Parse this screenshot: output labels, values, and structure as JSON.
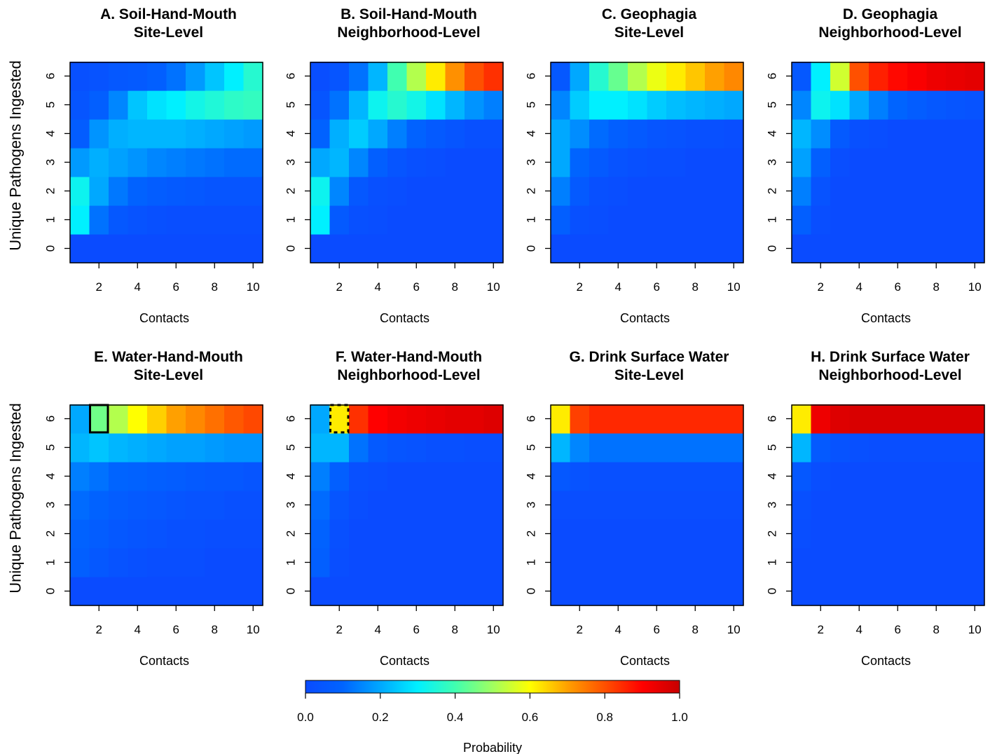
{
  "chart_data": {
    "type": "heatmap",
    "x_values": [
      1,
      2,
      3,
      4,
      5,
      6,
      7,
      8,
      9,
      10
    ],
    "x_tick_labels": [
      "2",
      "4",
      "6",
      "8",
      "10"
    ],
    "y_values": [
      0,
      1,
      2,
      3,
      4,
      5,
      6
    ],
    "y_tick_labels": [
      "0",
      "1",
      "2",
      "3",
      "4",
      "5",
      "6"
    ],
    "xlabel": "Contacts",
    "ylabel": "Unique Pathogens Ingested",
    "colorbar": {
      "label": "Probability",
      "range": [
        0,
        1
      ],
      "tick_labels": [
        "0.0",
        "0.2",
        "0.4",
        "0.6",
        "0.8",
        "1.0"
      ],
      "colors": [
        "#0a4bff",
        "#0064ff",
        "#00a8ff",
        "#00f0ff",
        "#40ffb0",
        "#a0ff60",
        "#ffff00",
        "#ffa000",
        "#ff5000",
        "#ff0000",
        "#c80000"
      ]
    },
    "panels": [
      {
        "title_line1": "A. Soil-Hand-Mouth",
        "title_line2": "Site-Level",
        "values": [
          [
            0.0,
            0.0,
            0.0,
            0.0,
            0.0,
            0.0,
            0.0,
            0.0,
            0.0,
            0.0
          ],
          [
            0.3,
            0.12,
            0.05,
            0.03,
            0.02,
            0.01,
            0.01,
            0.01,
            0.01,
            0.01
          ],
          [
            0.32,
            0.2,
            0.13,
            0.09,
            0.07,
            0.06,
            0.05,
            0.04,
            0.04,
            0.04
          ],
          [
            0.18,
            0.21,
            0.19,
            0.17,
            0.15,
            0.14,
            0.13,
            0.12,
            0.11,
            0.11
          ],
          [
            0.07,
            0.17,
            0.21,
            0.22,
            0.22,
            0.22,
            0.21,
            0.2,
            0.19,
            0.18
          ],
          [
            0.04,
            0.08,
            0.15,
            0.24,
            0.28,
            0.3,
            0.33,
            0.35,
            0.37,
            0.38
          ],
          [
            0.02,
            0.03,
            0.05,
            0.06,
            0.08,
            0.12,
            0.18,
            0.24,
            0.3,
            0.36
          ]
        ]
      },
      {
        "title_line1": "B. Soil-Hand-Mouth",
        "title_line2": "Neighborhood-Level",
        "values": [
          [
            0.0,
            0.0,
            0.0,
            0.0,
            0.0,
            0.0,
            0.0,
            0.0,
            0.0,
            0.0
          ],
          [
            0.3,
            0.06,
            0.02,
            0.01,
            0.0,
            0.0,
            0.0,
            0.0,
            0.0,
            0.0
          ],
          [
            0.32,
            0.15,
            0.05,
            0.02,
            0.01,
            0.0,
            0.0,
            0.0,
            0.0,
            0.0
          ],
          [
            0.2,
            0.22,
            0.15,
            0.08,
            0.04,
            0.02,
            0.01,
            0.0,
            0.0,
            0.0
          ],
          [
            0.09,
            0.21,
            0.25,
            0.2,
            0.14,
            0.09,
            0.06,
            0.04,
            0.02,
            0.02
          ],
          [
            0.04,
            0.12,
            0.22,
            0.32,
            0.36,
            0.33,
            0.28,
            0.22,
            0.17,
            0.14
          ],
          [
            0.01,
            0.04,
            0.12,
            0.22,
            0.4,
            0.52,
            0.62,
            0.72,
            0.8,
            0.84
          ]
        ]
      },
      {
        "title_line1": "C. Geophagia",
        "title_line2": "Site-Level",
        "values": [
          [
            0.0,
            0.0,
            0.0,
            0.0,
            0.0,
            0.0,
            0.0,
            0.0,
            0.0,
            0.0
          ],
          [
            0.08,
            0.02,
            0.01,
            0.0,
            0.0,
            0.0,
            0.0,
            0.0,
            0.0,
            0.0
          ],
          [
            0.14,
            0.06,
            0.02,
            0.01,
            0.0,
            0.0,
            0.0,
            0.0,
            0.0,
            0.0
          ],
          [
            0.2,
            0.1,
            0.06,
            0.03,
            0.02,
            0.01,
            0.01,
            0.0,
            0.0,
            0.0
          ],
          [
            0.2,
            0.16,
            0.11,
            0.08,
            0.06,
            0.04,
            0.03,
            0.02,
            0.02,
            0.01
          ],
          [
            0.15,
            0.25,
            0.3,
            0.3,
            0.28,
            0.25,
            0.23,
            0.22,
            0.21,
            0.2
          ],
          [
            0.05,
            0.2,
            0.36,
            0.44,
            0.52,
            0.58,
            0.62,
            0.66,
            0.7,
            0.73
          ]
        ]
      },
      {
        "title_line1": "D. Geophagia",
        "title_line2": "Neighborhood-Level",
        "values": [
          [
            0.0,
            0.0,
            0.0,
            0.0,
            0.0,
            0.0,
            0.0,
            0.0,
            0.0,
            0.0
          ],
          [
            0.08,
            0.01,
            0.0,
            0.0,
            0.0,
            0.0,
            0.0,
            0.0,
            0.0,
            0.0
          ],
          [
            0.14,
            0.03,
            0.0,
            0.0,
            0.0,
            0.0,
            0.0,
            0.0,
            0.0,
            0.0
          ],
          [
            0.19,
            0.08,
            0.01,
            0.0,
            0.0,
            0.0,
            0.0,
            0.0,
            0.0,
            0.0
          ],
          [
            0.22,
            0.16,
            0.06,
            0.02,
            0.01,
            0.0,
            0.0,
            0.0,
            0.0,
            0.0
          ],
          [
            0.15,
            0.32,
            0.28,
            0.2,
            0.14,
            0.1,
            0.07,
            0.05,
            0.04,
            0.03
          ],
          [
            0.05,
            0.3,
            0.55,
            0.8,
            0.86,
            0.89,
            0.91,
            0.93,
            0.94,
            0.95
          ]
        ]
      },
      {
        "title_line1": "E. Water-Hand-Mouth",
        "title_line2": "Site-Level",
        "highlight": {
          "x": 2,
          "y": 6,
          "style": "solid"
        },
        "values": [
          [
            0.0,
            0.0,
            0.0,
            0.0,
            0.0,
            0.0,
            0.0,
            0.0,
            0.0,
            0.0
          ],
          [
            0.08,
            0.05,
            0.03,
            0.02,
            0.01,
            0.01,
            0.01,
            0.0,
            0.0,
            0.0
          ],
          [
            0.09,
            0.07,
            0.05,
            0.04,
            0.03,
            0.02,
            0.02,
            0.01,
            0.01,
            0.01
          ],
          [
            0.11,
            0.09,
            0.07,
            0.06,
            0.05,
            0.04,
            0.03,
            0.03,
            0.02,
            0.02
          ],
          [
            0.14,
            0.12,
            0.1,
            0.09,
            0.08,
            0.07,
            0.06,
            0.05,
            0.05,
            0.04
          ],
          [
            0.22,
            0.24,
            0.22,
            0.21,
            0.2,
            0.19,
            0.19,
            0.18,
            0.17,
            0.17
          ],
          [
            0.2,
            0.45,
            0.52,
            0.6,
            0.65,
            0.7,
            0.73,
            0.76,
            0.79,
            0.81
          ]
        ]
      },
      {
        "title_line1": "F. Water-Hand-Mouth",
        "title_line2": "Neighborhood-Level",
        "highlight": {
          "x": 2,
          "y": 6,
          "style": "dashed"
        },
        "values": [
          [
            0.0,
            0.0,
            0.0,
            0.0,
            0.0,
            0.0,
            0.0,
            0.0,
            0.0,
            0.0
          ],
          [
            0.08,
            0.01,
            0.0,
            0.0,
            0.0,
            0.0,
            0.0,
            0.0,
            0.0,
            0.0
          ],
          [
            0.09,
            0.02,
            0.0,
            0.0,
            0.0,
            0.0,
            0.0,
            0.0,
            0.0,
            0.0
          ],
          [
            0.11,
            0.04,
            0.01,
            0.0,
            0.0,
            0.0,
            0.0,
            0.0,
            0.0,
            0.0
          ],
          [
            0.14,
            0.08,
            0.02,
            0.01,
            0.0,
            0.0,
            0.0,
            0.0,
            0.0,
            0.0
          ],
          [
            0.22,
            0.22,
            0.12,
            0.06,
            0.04,
            0.03,
            0.02,
            0.02,
            0.01,
            0.01
          ],
          [
            0.2,
            0.62,
            0.84,
            0.9,
            0.92,
            0.93,
            0.94,
            0.95,
            0.95,
            0.96
          ]
        ]
      },
      {
        "title_line1": "G. Drink Surface Water",
        "title_line2": "Site-Level",
        "values": [
          [
            0.0,
            0.0,
            0.0,
            0.0,
            0.0,
            0.0,
            0.0,
            0.0,
            0.0,
            0.0
          ],
          [
            0.0,
            0.0,
            0.0,
            0.0,
            0.0,
            0.0,
            0.0,
            0.0,
            0.0,
            0.0
          ],
          [
            0.0,
            0.0,
            0.0,
            0.0,
            0.0,
            0.0,
            0.0,
            0.0,
            0.0,
            0.0
          ],
          [
            0.01,
            0.01,
            0.01,
            0.01,
            0.01,
            0.01,
            0.01,
            0.01,
            0.01,
            0.01
          ],
          [
            0.05,
            0.03,
            0.02,
            0.02,
            0.02,
            0.02,
            0.02,
            0.02,
            0.02,
            0.02
          ],
          [
            0.22,
            0.15,
            0.12,
            0.12,
            0.12,
            0.12,
            0.12,
            0.12,
            0.12,
            0.12
          ],
          [
            0.62,
            0.82,
            0.85,
            0.85,
            0.85,
            0.85,
            0.85,
            0.85,
            0.85,
            0.85
          ]
        ]
      },
      {
        "title_line1": "H. Drink Surface Water",
        "title_line2": "Neighborhood-Level",
        "values": [
          [
            0.0,
            0.0,
            0.0,
            0.0,
            0.0,
            0.0,
            0.0,
            0.0,
            0.0,
            0.0
          ],
          [
            0.0,
            0.0,
            0.0,
            0.0,
            0.0,
            0.0,
            0.0,
            0.0,
            0.0,
            0.0
          ],
          [
            0.01,
            0.0,
            0.0,
            0.0,
            0.0,
            0.0,
            0.0,
            0.0,
            0.0,
            0.0
          ],
          [
            0.02,
            0.0,
            0.0,
            0.0,
            0.0,
            0.0,
            0.0,
            0.0,
            0.0,
            0.0
          ],
          [
            0.05,
            0.01,
            0.0,
            0.0,
            0.0,
            0.0,
            0.0,
            0.0,
            0.0,
            0.0
          ],
          [
            0.22,
            0.06,
            0.03,
            0.02,
            0.01,
            0.01,
            0.01,
            0.01,
            0.01,
            0.01
          ],
          [
            0.62,
            0.93,
            0.96,
            0.97,
            0.97,
            0.97,
            0.97,
            0.97,
            0.97,
            0.97
          ]
        ]
      }
    ]
  }
}
